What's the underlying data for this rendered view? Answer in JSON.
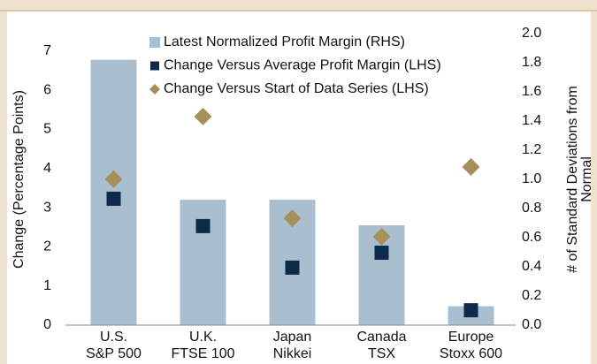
{
  "chart_data": {
    "type": "combo",
    "categories": [
      [
        "U.S.",
        "S&P 500"
      ],
      [
        "U.K.",
        "FTSE 100"
      ],
      [
        "Japan",
        "Nikkei"
      ],
      [
        "Canada",
        "TSX"
      ],
      [
        "Europe",
        "Stoxx 600"
      ]
    ],
    "ylabel": "Change (Percentage Points)",
    "y2label": [
      "# of Standard Deviations from",
      "Normal"
    ],
    "ylim": [
      0,
      7.45
    ],
    "yticks": [
      0,
      1,
      2,
      3,
      4,
      5,
      6,
      7
    ],
    "y2lim": [
      0,
      2.0
    ],
    "y2ticks": [
      {
        "value": 0,
        "label": "0.0"
      },
      {
        "value": 0.2,
        "label": "0.2"
      },
      {
        "value": 0.4,
        "label": "0.4"
      },
      {
        "value": 0.6,
        "label": "0.6"
      },
      {
        "value": 0.8,
        "label": "0.8"
      },
      {
        "value": 1.0,
        "label": "1.0"
      },
      {
        "value": 1.2,
        "label": "1.2"
      },
      {
        "value": 1.4,
        "label": "1.4"
      },
      {
        "value": 1.6,
        "label": "1.6"
      },
      {
        "value": 1.8,
        "label": "1.8"
      },
      {
        "value": 2.0,
        "label": "2.0"
      }
    ],
    "series": [
      {
        "name": "Latest Normalized Profit Margin (RHS)",
        "color": "#a9bfd0",
        "marker": "bar",
        "axis": "y2",
        "values": [
          1.82,
          0.86,
          0.86,
          0.685,
          0.13
        ]
      },
      {
        "name": "Change Versus Average Profit Margin (LHS)",
        "color": "#0d2a4a",
        "marker": "square",
        "values": [
          3.23,
          2.53,
          1.47,
          1.85,
          0.38
        ]
      },
      {
        "name": "Change Versus Start of Data Series (LHS)",
        "color": "#a68f5a",
        "marker": "diamond",
        "values": [
          3.73,
          5.33,
          2.73,
          2.26,
          4.04
        ]
      }
    ]
  }
}
